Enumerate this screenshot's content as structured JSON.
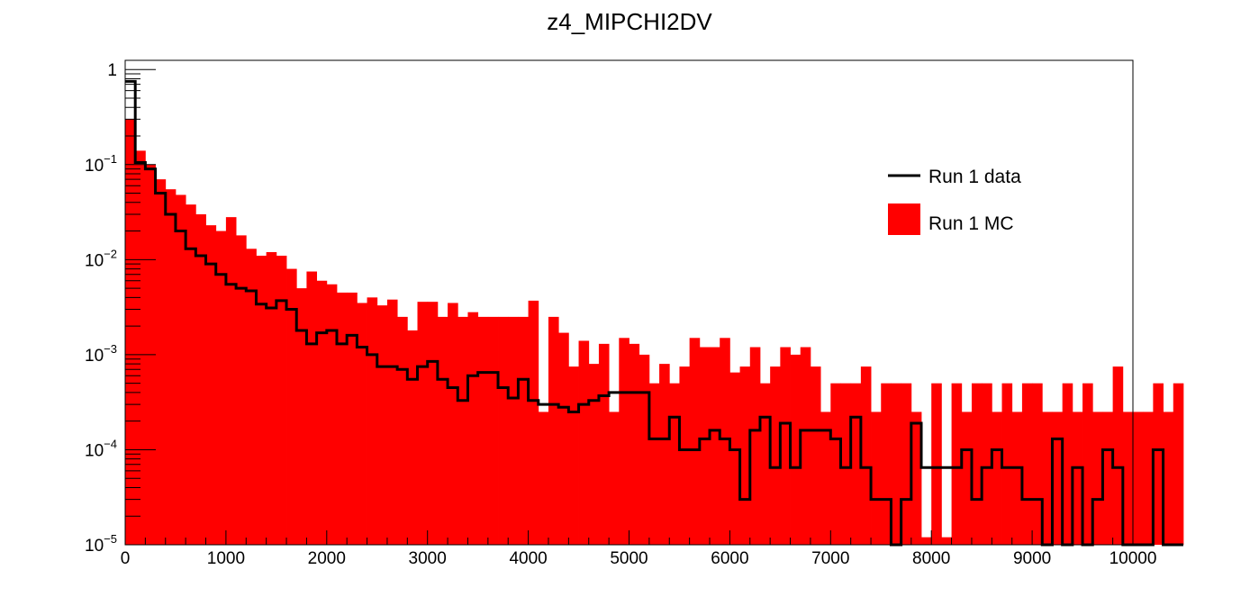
{
  "chart_data": {
    "type": "bar",
    "title": "z4_MIPCHI2DV",
    "xlabel": "",
    "ylabel": "",
    "xlim": [
      0,
      10000
    ],
    "ylim": [
      1e-05,
      1.25
    ],
    "y_scale": "log",
    "bin_width": 100,
    "grid": false,
    "legend_position": "top-right",
    "x_ticks": [
      "0",
      "1000",
      "2000",
      "3000",
      "4000",
      "5000",
      "6000",
      "7000",
      "8000",
      "9000",
      "10000"
    ],
    "y_ticks": [
      {
        "value": 1,
        "base": "1",
        "exp": ""
      },
      {
        "value": 0.1,
        "base": "10",
        "exp": "−1"
      },
      {
        "value": 0.01,
        "base": "10",
        "exp": "−2"
      },
      {
        "value": 0.001,
        "base": "10",
        "exp": "−3"
      },
      {
        "value": 0.0001,
        "base": "10",
        "exp": "−4"
      },
      {
        "value": 1e-05,
        "base": "10",
        "exp": "−5"
      }
    ],
    "series": [
      {
        "name": "Run 1 data",
        "style": "step",
        "color": "#000000",
        "values": [
          0.75,
          0.105,
          0.09,
          0.05,
          0.03,
          0.02,
          0.013,
          0.011,
          0.009,
          0.007,
          0.0055,
          0.005,
          0.0047,
          0.0034,
          0.0031,
          0.0037,
          0.003,
          0.0018,
          0.0013,
          0.0017,
          0.0018,
          0.0013,
          0.0016,
          0.0012,
          0.001,
          0.00075,
          0.00075,
          0.0007,
          0.00055,
          0.00075,
          0.00085,
          0.00055,
          0.00045,
          0.00033,
          0.0006,
          0.00065,
          0.00065,
          0.00045,
          0.00035,
          0.00055,
          0.00033,
          0.0003,
          0.0003,
          0.00028,
          0.00025,
          0.0003,
          0.00033,
          0.00037,
          0.0004,
          0.0004,
          0.0004,
          0.0004,
          0.00013,
          0.00013,
          0.00022,
          0.0001,
          0.0001,
          0.00013,
          0.00016,
          0.00013,
          0.0001,
          3e-05,
          0.00016,
          0.00022,
          6.5e-05,
          0.00019,
          6.5e-05,
          0.00016,
          0.00016,
          0.00016,
          0.00013,
          6.5e-05,
          0.00022,
          6.5e-05,
          3e-05,
          3e-05,
          1e-05,
          3e-05,
          0.00019,
          6.5e-05,
          6.5e-05,
          6.5e-05,
          6.5e-05,
          0.0001,
          3e-05,
          6.5e-05,
          0.0001,
          6.5e-05,
          6.5e-05,
          3e-05,
          3e-05,
          1e-05,
          0.00013,
          1e-05,
          6.5e-05,
          1e-05,
          3e-05,
          0.0001,
          6.5e-05,
          1e-05,
          1e-05,
          1e-05,
          0.0001,
          1e-05,
          1e-05
        ]
      },
      {
        "name": "Run 1 MC",
        "style": "filled",
        "color": "#ff0000",
        "values": [
          0.3,
          0.14,
          0.1,
          0.07,
          0.055,
          0.048,
          0.038,
          0.03,
          0.023,
          0.02,
          0.028,
          0.018,
          0.013,
          0.011,
          0.012,
          0.011,
          0.008,
          0.005,
          0.0075,
          0.006,
          0.0055,
          0.0045,
          0.0045,
          0.0035,
          0.004,
          0.0033,
          0.0038,
          0.0025,
          0.0018,
          0.0036,
          0.0036,
          0.0025,
          0.0035,
          0.0025,
          0.0028,
          0.0025,
          0.0025,
          0.0025,
          0.0025,
          0.0025,
          0.0037,
          0.00025,
          0.0025,
          0.0017,
          0.00075,
          0.0014,
          0.0008,
          0.0013,
          0.00025,
          0.0015,
          0.0013,
          0.001,
          0.0005,
          0.0008,
          0.0005,
          0.00075,
          0.0015,
          0.0012,
          0.0012,
          0.0015,
          0.00065,
          0.00075,
          0.0012,
          0.0005,
          0.00075,
          0.0012,
          0.001,
          0.0012,
          0.00075,
          0.00025,
          0.0005,
          0.0005,
          0.0005,
          0.00075,
          0.00025,
          0.0005,
          0.0005,
          0.0005,
          0.00025,
          1.2e-05,
          0.0005,
          1.2e-05,
          0.0005,
          0.00025,
          0.0005,
          0.0005,
          0.00025,
          0.0005,
          0.00025,
          0.0005,
          0.0005,
          0.00025,
          0.00025,
          0.0005,
          0.00025,
          0.0005,
          0.00025,
          0.00025,
          0.00075,
          0.00025,
          0.00025,
          0.00025,
          0.0005,
          0.00025,
          0.0005
        ]
      }
    ]
  }
}
